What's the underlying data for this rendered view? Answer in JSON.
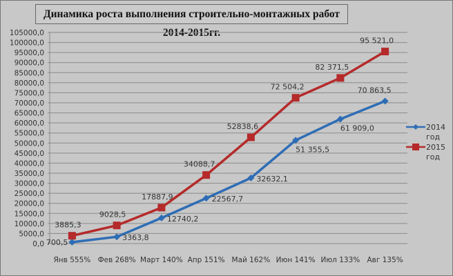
{
  "chart_data": {
    "type": "line",
    "title": "Динамика роста выполнения строительно-монтажных работ 2014-2015гг.",
    "categories": [
      "Янв 555%",
      "Фев 268%",
      "Март 140%",
      "Апр 151%",
      "Май 162%",
      "Июн 141%",
      "Июл 133%",
      "Авг 135%"
    ],
    "series": [
      {
        "name": "2014 год",
        "color": "#2e6db5",
        "marker": "diamond",
        "values": [
          700.5,
          3363.8,
          12740.2,
          22567.7,
          32632.1,
          51355.5,
          61909.0,
          70863.5
        ],
        "labels": [
          "700,5",
          "3363,8",
          "12740,2",
          "22567,7",
          "32632,1",
          "51 355,5",
          "61 909,0",
          "70 863,5"
        ]
      },
      {
        "name": "2015 год",
        "color": "#b52a2a",
        "marker": "square",
        "values": [
          3885.3,
          9028.5,
          17887.9,
          34088.7,
          52838.6,
          72504.2,
          82371.5,
          95521.0
        ],
        "labels": [
          "3885,3",
          "9028,5",
          "17887,9",
          "34088,7",
          "52838,6",
          "72 504,2",
          "82 371,5",
          "95 521,0"
        ]
      }
    ],
    "legend": {
      "position": "right",
      "items": [
        {
          "line1": "2014",
          "line2": "год"
        },
        {
          "line1": "2015",
          "line2": "год"
        }
      ]
    },
    "ylim": [
      0,
      105000
    ],
    "ytick_step": 5000,
    "yticks": [
      "0,0",
      "5000,0",
      "10000,0",
      "15000,0",
      "20000,0",
      "25000,0",
      "30000,0",
      "35000,0",
      "40000,0",
      "45000,0",
      "50000,0",
      "55000,0",
      "60000,0",
      "65000,0",
      "70000,0",
      "75000,0",
      "80000,0",
      "85000,0",
      "90000,0",
      "95000,0",
      "100000,0",
      "105000,0"
    ],
    "grid": true,
    "xlabel": "",
    "ylabel": ""
  }
}
